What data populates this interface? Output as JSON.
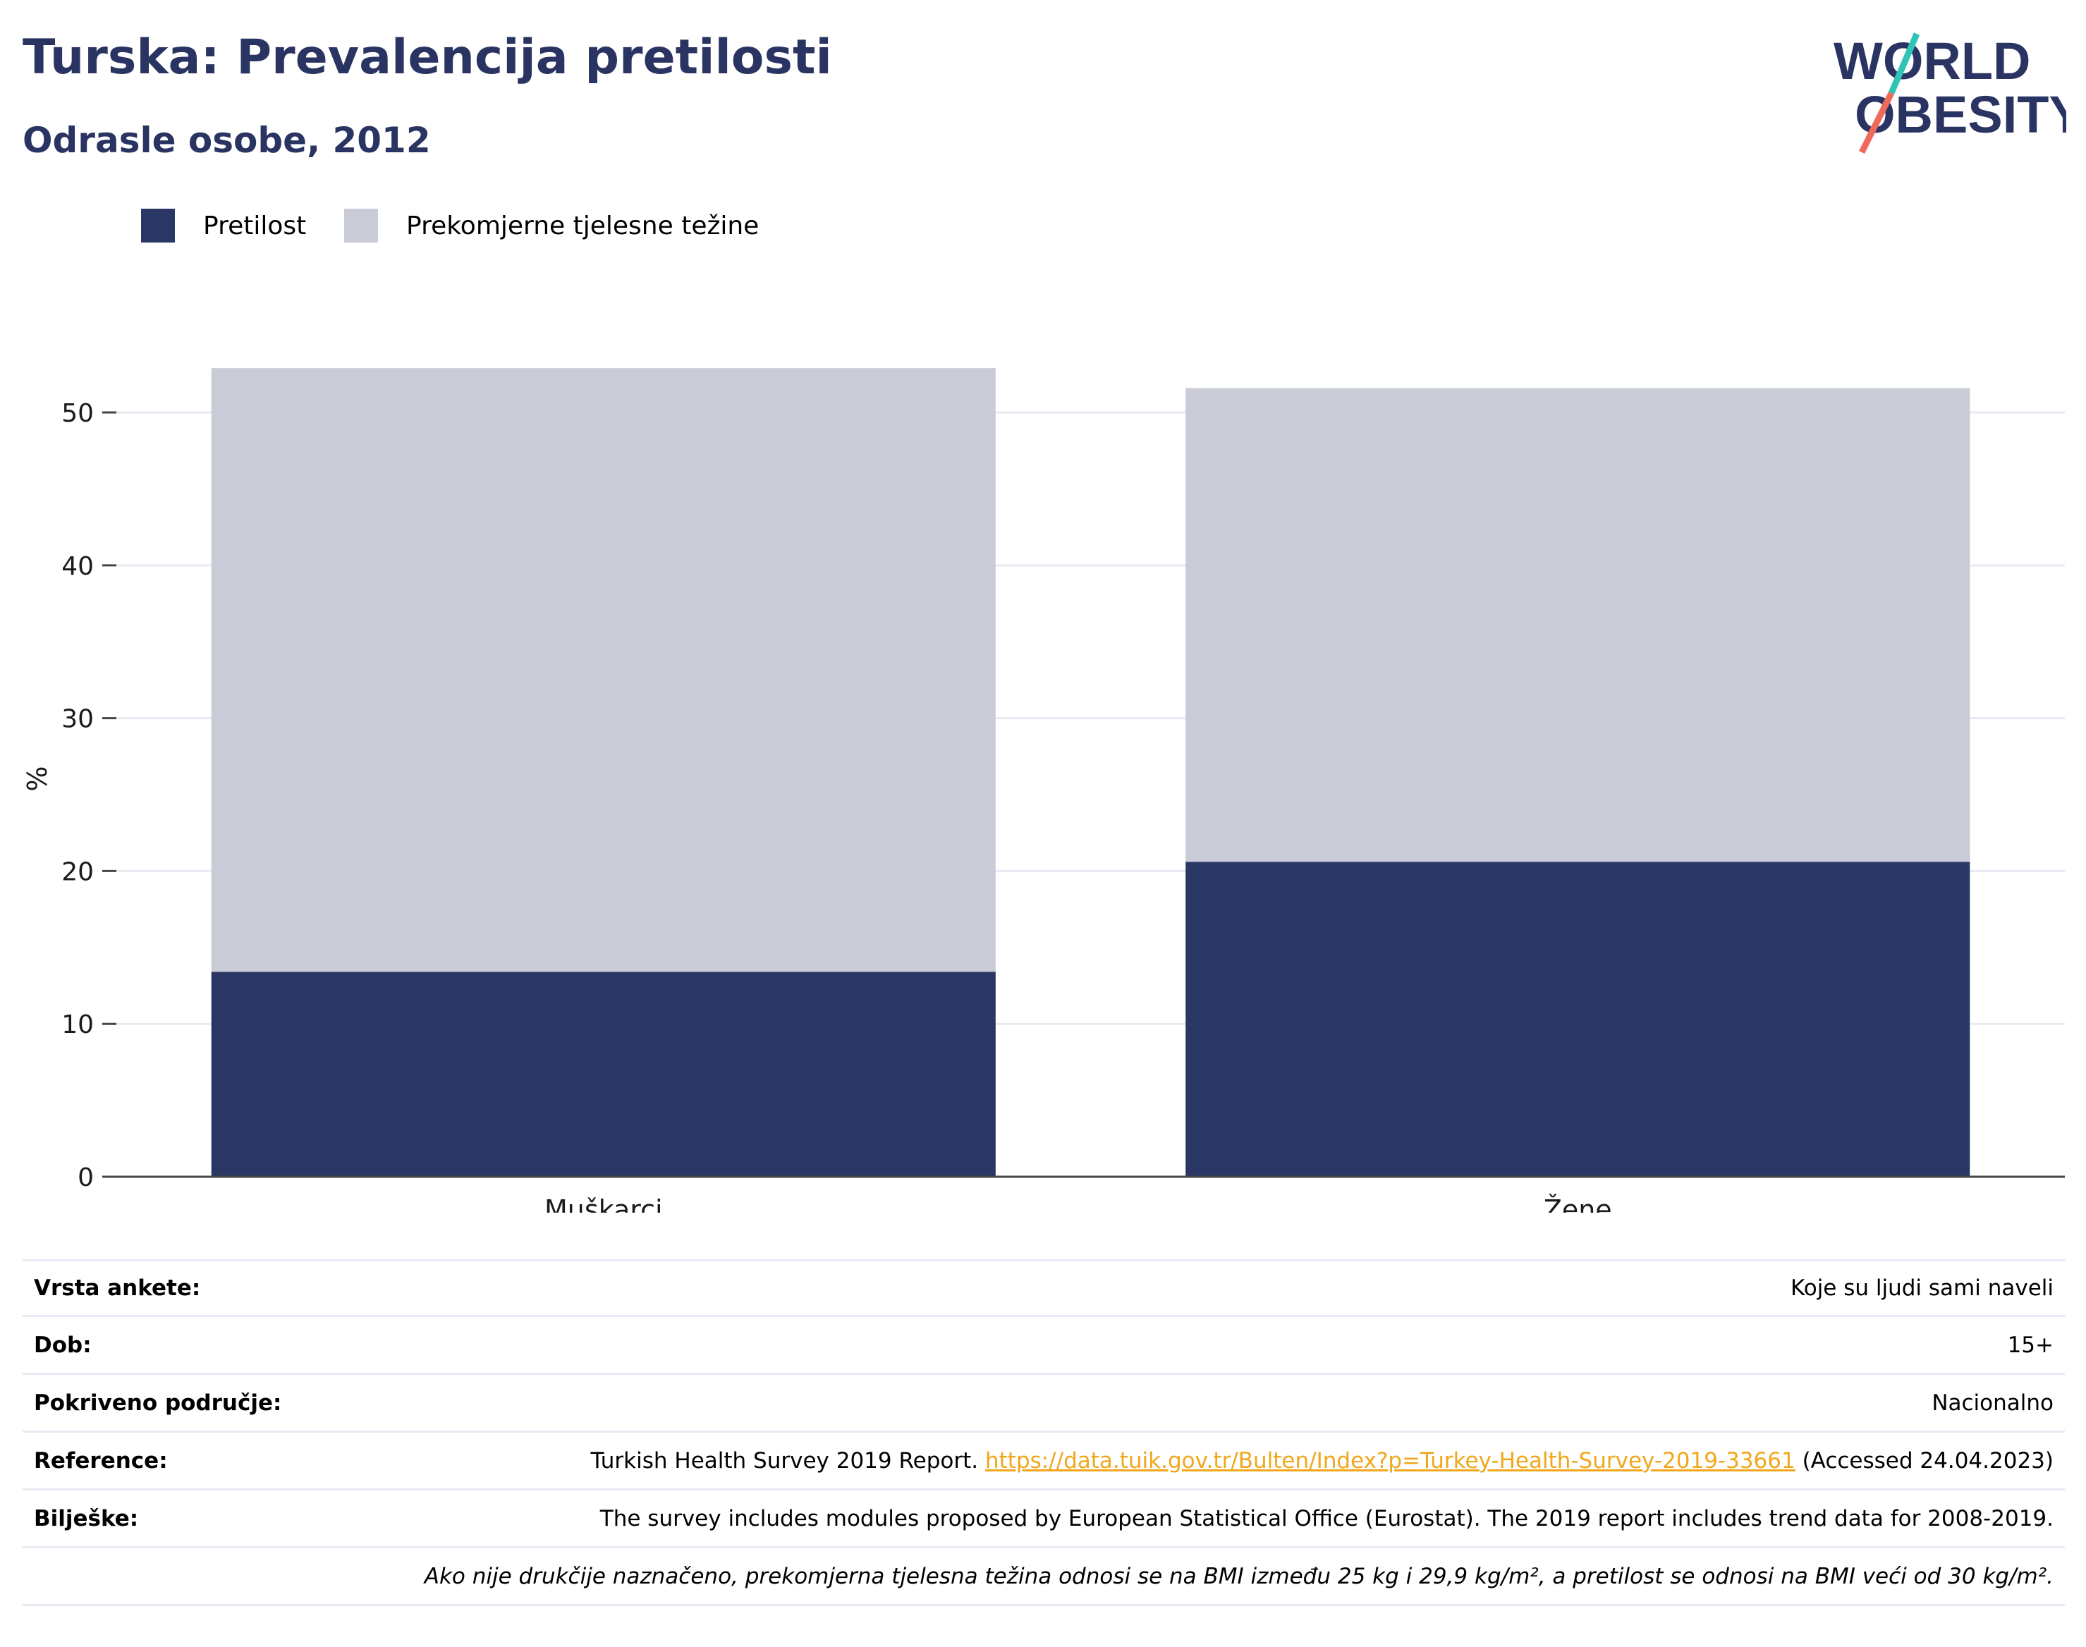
{
  "header": {
    "title": "Turska: Prevalencija pretilosti",
    "subtitle": "Odrasle osobe, 2012"
  },
  "logo": {
    "line1": "WORLD",
    "line2": "OBESITY",
    "icon": "world-obesity-logo"
  },
  "colors": {
    "obesity": "#2a3663",
    "overweight": "#c9cbd7",
    "title": "#2a3462",
    "link": "#f0a71c",
    "grid": "#e8e9f2"
  },
  "legend": [
    {
      "label": "Pretilost",
      "color": "#2a3663"
    },
    {
      "label": "Prekomjerne tjelesne težine",
      "color": "#c9cbd7"
    }
  ],
  "chart_data": {
    "type": "bar",
    "stacked": true,
    "categories": [
      "Muškarci",
      "Žene"
    ],
    "series": [
      {
        "name": "Pretilost",
        "values": [
          13.4,
          20.6
        ]
      },
      {
        "name": "Prekomjerne tjelesne težine",
        "values": [
          39.5,
          31.0
        ]
      }
    ],
    "ylabel": "%",
    "ylim": [
      0,
      53
    ],
    "yticks": [
      0,
      10,
      20,
      30,
      40,
      50
    ],
    "grid": true,
    "legend_position": "top-left"
  },
  "info": {
    "survey_type": {
      "label": "Vrsta ankete:",
      "value": "Koje su ljudi sami naveli"
    },
    "age": {
      "label": "Dob:",
      "value": "15+"
    },
    "coverage": {
      "label": "Pokriveno područje:",
      "value": "Nacionalno"
    },
    "reference": {
      "label": "Reference:",
      "prefix": "Turkish Health Survey 2019 Report. ",
      "link": "https://data.tuik.gov.tr/Bulten/Index?p=Turkey-Health-Survey-2019-33661",
      "suffix": " (Accessed 24.04.2023)"
    },
    "notes": {
      "label": "Bilješke:",
      "value": "The survey includes modules proposed by European Statistical Office (Eurostat). The 2019 report includes trend data for 2008-2019."
    },
    "footnote": "Ako nije drukčije naznačeno, prekomjerna tjelesna težina odnosi se na BMI između 25 kg i 29,9 kg/m², a pretilost se odnosi na BMI veći od 30 kg/m²."
  }
}
